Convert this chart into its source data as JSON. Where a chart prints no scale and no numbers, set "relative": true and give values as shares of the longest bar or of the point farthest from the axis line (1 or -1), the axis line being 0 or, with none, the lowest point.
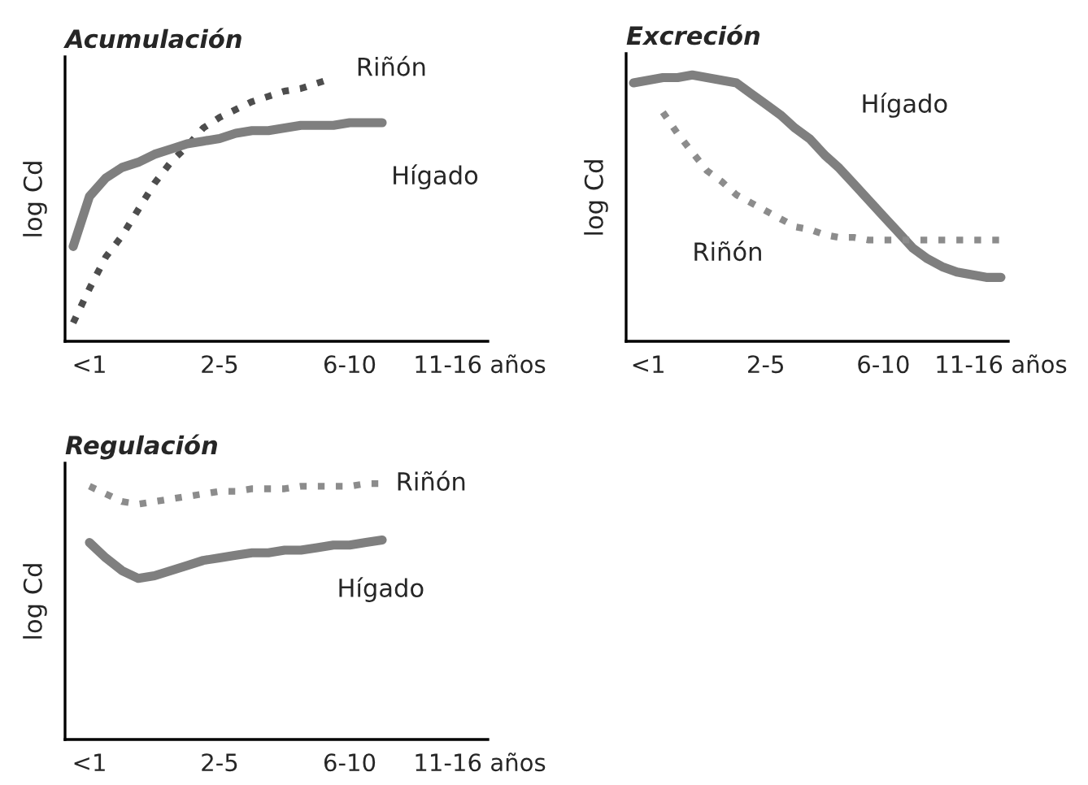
{
  "chart_data": [
    {
      "type": "line",
      "title": "Acumulación",
      "ylabel": "log Cd",
      "relative": true,
      "grid": false,
      "categories": [
        null,
        "<1",
        null,
        null,
        null,
        null,
        null,
        null,
        null,
        "2-5",
        null,
        null,
        null,
        null,
        null,
        null,
        null,
        "6-10",
        null,
        null,
        null,
        null,
        null,
        null,
        null,
        "11-16 años"
      ],
      "series": [
        {
          "name": "Riñón",
          "color": "#4d4d4d",
          "line_style": "dotted",
          "values": [
            0.07,
            0.2,
            0.32,
            0.4,
            0.5,
            0.6,
            0.68,
            0.74,
            0.81,
            0.85,
            0.88,
            0.91,
            0.93,
            0.95,
            0.96,
            0.98,
            1.0,
            null,
            null,
            null,
            null,
            null,
            null,
            null,
            null,
            null
          ]
        },
        {
          "name": "Hígado",
          "color": "#7f7f7f",
          "line_style": "solid",
          "values": [
            0.36,
            0.55,
            0.62,
            0.66,
            0.68,
            0.71,
            0.73,
            0.75,
            0.76,
            0.77,
            0.79,
            0.8,
            0.8,
            0.81,
            0.82,
            0.82,
            0.82,
            0.83,
            0.83,
            0.83,
            null,
            null,
            null,
            null,
            null,
            null
          ]
        }
      ]
    },
    {
      "type": "line",
      "title": "Excreción",
      "ylabel": "log Cd",
      "relative": true,
      "grid": false,
      "categories": [
        null,
        "<1",
        null,
        null,
        null,
        null,
        null,
        null,
        null,
        "2-5",
        null,
        null,
        null,
        null,
        null,
        null,
        null,
        "6-10",
        null,
        null,
        null,
        null,
        null,
        null,
        null,
        "11-16 años"
      ],
      "series": [
        {
          "name": "Hígado",
          "color": "#7f7f7f",
          "line_style": "solid",
          "values": [
            0.97,
            0.98,
            0.99,
            0.99,
            1.0,
            0.99,
            0.98,
            0.97,
            0.93,
            0.89,
            0.85,
            0.8,
            0.76,
            0.7,
            0.65,
            0.59,
            0.53,
            0.47,
            0.41,
            0.35,
            0.31,
            0.28,
            0.26,
            0.25,
            0.24,
            0.24
          ]
        },
        {
          "name": "Riñón",
          "color": "#8c8c8c",
          "line_style": "dotted",
          "values": [
            null,
            null,
            0.86,
            0.78,
            0.71,
            0.64,
            0.6,
            0.55,
            0.52,
            0.49,
            0.46,
            0.43,
            0.42,
            0.4,
            0.39,
            0.39,
            0.38,
            0.38,
            0.38,
            0.38,
            0.38,
            0.38,
            0.38,
            0.38,
            0.38,
            0.38
          ]
        }
      ]
    },
    {
      "type": "line",
      "title": "Regulación",
      "ylabel": "log Cd",
      "relative": true,
      "grid": false,
      "categories": [
        null,
        "<1",
        null,
        null,
        null,
        null,
        null,
        null,
        null,
        "2-5",
        null,
        null,
        null,
        null,
        null,
        null,
        null,
        "6-10",
        null,
        null,
        null,
        null,
        null,
        null,
        null,
        "11-16 años"
      ],
      "series": [
        {
          "name": "Riñón",
          "color": "#8c8c8c",
          "line_style": "dotted",
          "values": [
            null,
            0.99,
            0.96,
            0.93,
            0.92,
            0.93,
            0.94,
            0.95,
            0.96,
            0.97,
            0.97,
            0.98,
            0.98,
            0.98,
            0.99,
            0.99,
            0.99,
            0.99,
            1.0,
            1.0,
            null,
            null,
            null,
            null,
            null,
            null
          ]
        },
        {
          "name": "Hígado",
          "color": "#7f7f7f",
          "line_style": "solid",
          "values": [
            null,
            0.77,
            0.71,
            0.66,
            0.63,
            0.64,
            0.66,
            0.68,
            0.7,
            0.71,
            0.72,
            0.73,
            0.73,
            0.74,
            0.74,
            0.75,
            0.76,
            0.76,
            0.77,
            0.78,
            null,
            null,
            null,
            null,
            null,
            null
          ]
        }
      ]
    }
  ]
}
